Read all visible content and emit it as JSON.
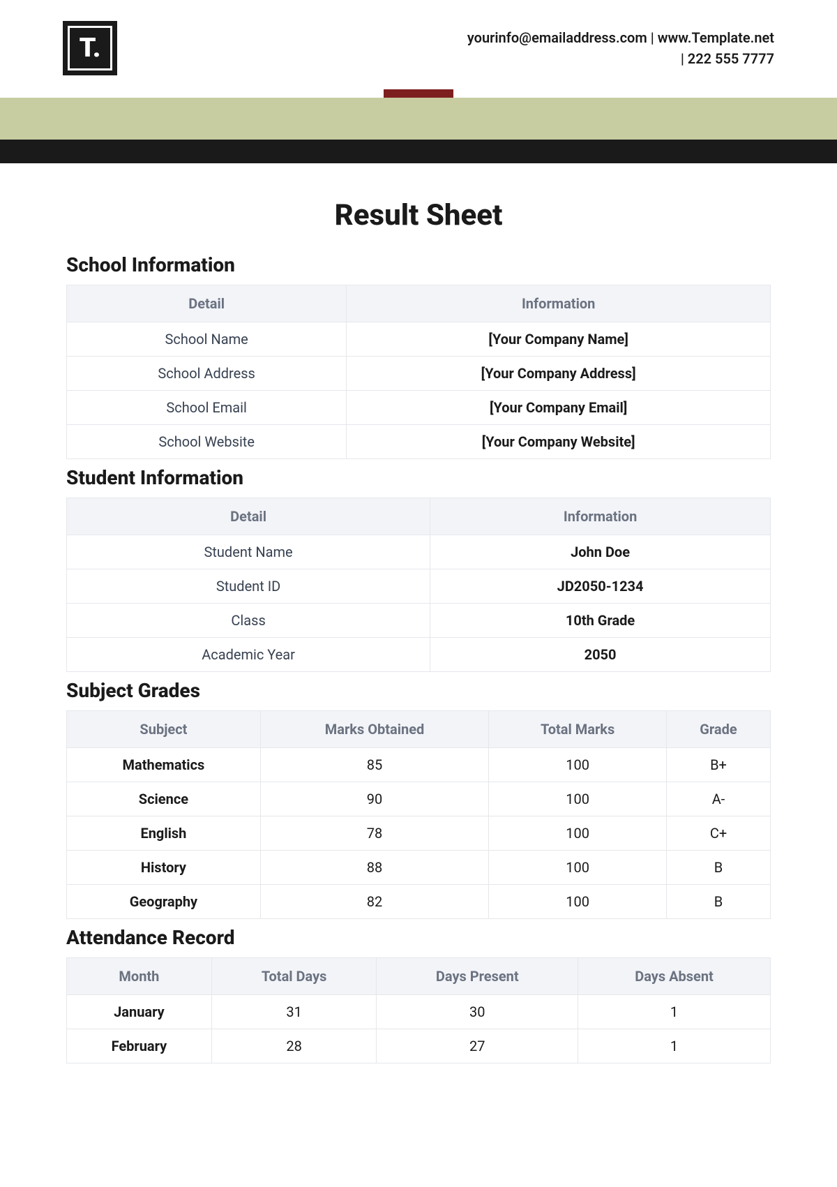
{
  "header": {
    "logo_text": "T.",
    "contact_line1": "yourinfo@emailaddress.com  |  www.Template.net",
    "contact_line2": "|  222 555 7777"
  },
  "colors": {
    "olive": "#c7cda1",
    "black": "#1a1a1a",
    "red_tab": "#7d1f1f",
    "th_bg": "#f2f4f8",
    "th_text": "#6b7280",
    "border": "#e5e7eb"
  },
  "page_title": "Result Sheet",
  "sections": {
    "school": {
      "title": "School Information",
      "columns": [
        "Detail",
        "Information"
      ],
      "rows": [
        [
          "School Name",
          "[Your Company Name]"
        ],
        [
          "School Address",
          "[Your Company Address]"
        ],
        [
          "School Email",
          "[Your Company Email]"
        ],
        [
          "School Website",
          "[Your Company Website]"
        ]
      ]
    },
    "student": {
      "title": "Student Information",
      "columns": [
        "Detail",
        "Information"
      ],
      "rows": [
        [
          "Student Name",
          "John Doe"
        ],
        [
          "Student ID",
          "JD2050-1234"
        ],
        [
          "Class",
          "10th Grade"
        ],
        [
          "Academic Year",
          "2050"
        ]
      ]
    },
    "grades": {
      "title": "Subject Grades",
      "columns": [
        "Subject",
        "Marks Obtained",
        "Total Marks",
        "Grade"
      ],
      "rows": [
        [
          "Mathematics",
          "85",
          "100",
          "B+"
        ],
        [
          "Science",
          "90",
          "100",
          "A-"
        ],
        [
          "English",
          "78",
          "100",
          "C+"
        ],
        [
          "History",
          "88",
          "100",
          "B"
        ],
        [
          "Geography",
          "82",
          "100",
          "B"
        ]
      ]
    },
    "attendance": {
      "title": "Attendance Record",
      "columns": [
        "Month",
        "Total Days",
        "Days Present",
        "Days Absent"
      ],
      "rows": [
        [
          "January",
          "31",
          "30",
          "1"
        ],
        [
          "February",
          "28",
          "27",
          "1"
        ]
      ]
    }
  }
}
